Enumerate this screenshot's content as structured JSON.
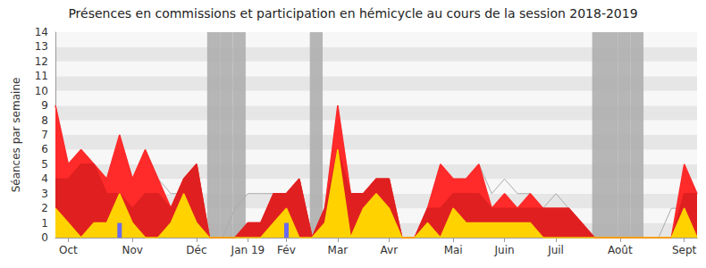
{
  "chart_data": {
    "type": "line",
    "title": "Présences en commissions et participation en hémicycle au cours de la session 2018-2019",
    "y_label": "Séances par semaine",
    "categories": [
      null,
      "Oct",
      null,
      null,
      null,
      null,
      "Nov",
      null,
      null,
      null,
      null,
      "Déc",
      null,
      null,
      null,
      "Jan 19",
      null,
      null,
      "Fév",
      null,
      null,
      null,
      "Mar",
      null,
      null,
      null,
      "Avr",
      null,
      null,
      null,
      null,
      "Mai",
      null,
      null,
      null,
      "Juin",
      null,
      null,
      null,
      "Juil",
      null,
      null,
      null,
      null,
      "Août",
      null,
      null,
      null,
      null,
      "Sept",
      null
    ],
    "series": [
      {
        "type": "bar",
        "color": "#aaaaaa",
        "values": [
          null,
          null,
          null,
          null,
          null,
          null,
          null,
          null,
          null,
          null,
          null,
          null,
          14,
          14,
          14,
          null,
          null,
          null,
          null,
          null,
          14,
          null,
          null,
          null,
          null,
          null,
          null,
          null,
          null,
          null,
          null,
          null,
          null,
          null,
          null,
          null,
          null,
          null,
          null,
          null,
          null,
          null,
          14,
          14,
          14,
          14,
          null,
          null,
          null,
          null,
          null
        ]
      },
      {
        "type": "line",
        "color": "#aaaaaa",
        "values": [
          9,
          5,
          6,
          5,
          4,
          7,
          4,
          6,
          4,
          3,
          3,
          5,
          0,
          0,
          2,
          3,
          3,
          3,
          3,
          4,
          0,
          2,
          9,
          3,
          3,
          4,
          4,
          0,
          0,
          2,
          5,
          4,
          4,
          5,
          3,
          4,
          3,
          3,
          2,
          3,
          2,
          1,
          0,
          0,
          0,
          0,
          0,
          0,
          2,
          2,
          3
        ]
      },
      {
        "type": "area",
        "color": "#ff2a2a",
        "values": [
          9,
          5,
          6,
          5,
          4,
          7,
          4,
          6,
          4,
          2,
          4,
          5,
          0,
          0,
          0,
          1,
          1,
          3,
          3,
          4,
          0,
          2,
          9,
          3,
          3,
          4,
          4,
          0,
          0,
          2,
          5,
          4,
          4,
          5,
          2,
          3,
          2,
          3,
          2,
          2,
          2,
          1,
          0,
          0,
          0,
          0,
          0,
          0,
          0,
          5,
          3
        ]
      },
      {
        "type": "area",
        "color": "#e02020",
        "values": [
          4,
          4,
          5,
          5,
          3,
          3,
          2,
          3,
          3,
          2,
          4,
          5,
          0,
          0,
          0,
          1,
          1,
          3,
          3,
          4,
          0,
          2,
          6,
          3,
          3,
          4,
          4,
          0,
          0,
          2,
          2,
          3,
          3,
          3,
          2,
          2,
          2,
          2,
          2,
          2,
          2,
          1,
          0,
          0,
          0,
          0,
          0,
          0,
          0,
          3,
          3
        ]
      },
      {
        "type": "area",
        "color": "#ffd200",
        "values": [
          2,
          1,
          0,
          1,
          1,
          3,
          1,
          0,
          0,
          1,
          3,
          1,
          0,
          0,
          0,
          0,
          0,
          1,
          2,
          0,
          0,
          1,
          6,
          0,
          2,
          3,
          2,
          0,
          0,
          1,
          0,
          2,
          1,
          1,
          1,
          1,
          1,
          1,
          0,
          0,
          0,
          0,
          0,
          0,
          0,
          0,
          0,
          0,
          0,
          2,
          0
        ]
      },
      {
        "type": "bar",
        "color": "#6a6aee",
        "values": [
          null,
          null,
          null,
          null,
          null,
          1,
          null,
          null,
          null,
          null,
          null,
          null,
          null,
          null,
          null,
          null,
          null,
          null,
          1,
          null,
          null,
          null,
          null,
          null,
          null,
          null,
          null,
          null,
          null,
          null,
          null,
          null,
          null,
          null,
          null,
          null,
          null,
          null,
          null,
          null,
          null,
          null,
          null,
          null,
          null,
          null,
          null,
          null,
          null,
          null,
          null
        ]
      }
    ],
    "ylim": [
      0,
      14
    ],
    "yticks": [
      0,
      1,
      2,
      3,
      4,
      5,
      6,
      7,
      8,
      9,
      10,
      11,
      12,
      13,
      14
    ],
    "grid": true
  }
}
